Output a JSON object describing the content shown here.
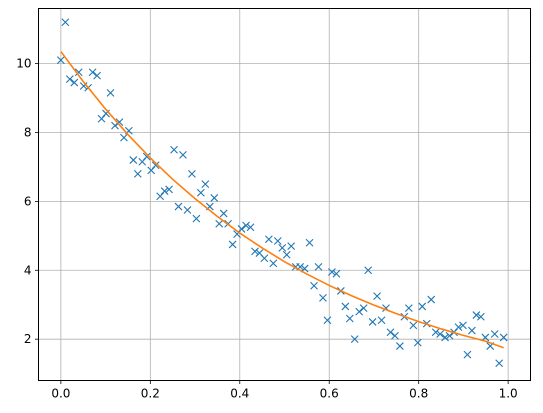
{
  "chart_data": {
    "type": "scatter",
    "title": "",
    "xlabel": "",
    "ylabel": "",
    "xlim": [
      -0.05,
      1.05
    ],
    "ylim": [
      0.8,
      11.6
    ],
    "xticks": [
      0.0,
      0.2,
      0.4,
      0.6,
      0.8,
      1.0
    ],
    "xtick_labels": [
      "0.0",
      "0.2",
      "0.4",
      "0.6",
      "0.8",
      "1.0"
    ],
    "yticks": [
      2,
      4,
      6,
      8,
      10
    ],
    "ytick_labels": [
      "2",
      "4",
      "6",
      "8",
      "10"
    ],
    "grid": true,
    "legend": "none",
    "colors": {
      "scatter": "#1f77b4",
      "fit": "#ff7f0e",
      "grid": "#b0b0b0"
    },
    "series": [
      {
        "kind": "scatter",
        "marker": "x",
        "x": [
          0.0,
          0.01,
          0.02,
          0.03,
          0.04,
          0.051,
          0.061,
          0.071,
          0.081,
          0.091,
          0.101,
          0.111,
          0.121,
          0.131,
          0.141,
          0.152,
          0.162,
          0.172,
          0.182,
          0.192,
          0.202,
          0.212,
          0.222,
          0.232,
          0.242,
          0.253,
          0.263,
          0.273,
          0.283,
          0.293,
          0.303,
          0.313,
          0.323,
          0.333,
          0.343,
          0.354,
          0.364,
          0.374,
          0.384,
          0.394,
          0.404,
          0.414,
          0.424,
          0.434,
          0.444,
          0.455,
          0.465,
          0.475,
          0.485,
          0.495,
          0.505,
          0.515,
          0.525,
          0.535,
          0.545,
          0.556,
          0.566,
          0.576,
          0.586,
          0.596,
          0.606,
          0.616,
          0.626,
          0.636,
          0.646,
          0.657,
          0.667,
          0.677,
          0.687,
          0.697,
          0.707,
          0.717,
          0.727,
          0.737,
          0.747,
          0.758,
          0.768,
          0.778,
          0.788,
          0.798,
          0.808,
          0.818,
          0.828,
          0.838,
          0.848,
          0.859,
          0.869,
          0.879,
          0.889,
          0.899,
          0.909,
          0.919,
          0.929,
          0.939,
          0.949,
          0.96,
          0.97,
          0.98,
          0.99
        ],
        "y": [
          10.1,
          11.2,
          9.55,
          9.45,
          9.75,
          9.35,
          9.3,
          9.75,
          9.65,
          8.4,
          8.55,
          9.15,
          8.2,
          8.3,
          7.85,
          8.05,
          7.2,
          6.8,
          7.15,
          7.3,
          6.9,
          7.05,
          6.15,
          6.3,
          6.35,
          7.5,
          5.85,
          7.35,
          5.75,
          6.8,
          5.5,
          6.25,
          6.5,
          5.85,
          6.1,
          5.35,
          5.65,
          5.35,
          4.75,
          5.05,
          5.2,
          5.3,
          5.25,
          4.55,
          4.5,
          4.35,
          4.9,
          4.2,
          4.85,
          4.65,
          4.45,
          4.7,
          4.1,
          4.1,
          4.05,
          4.8,
          3.55,
          4.1,
          3.2,
          2.55,
          3.95,
          3.9,
          3.4,
          2.95,
          2.6,
          2.0,
          2.8,
          2.9,
          4.0,
          2.5,
          3.25,
          2.55,
          2.9,
          2.2,
          2.1,
          1.8,
          2.65,
          2.9,
          2.4,
          1.9,
          2.95,
          2.45,
          3.15,
          2.2,
          2.15,
          2.05,
          2.1,
          2.2,
          2.35,
          2.4,
          1.55,
          2.25,
          2.7,
          2.65,
          2.05,
          1.8,
          2.15,
          1.3,
          2.05
        ]
      },
      {
        "kind": "line",
        "x": [
          0.0,
          0.05,
          0.1,
          0.15,
          0.2,
          0.25,
          0.3,
          0.35,
          0.4,
          0.45,
          0.5,
          0.55,
          0.6,
          0.65,
          0.7,
          0.75,
          0.8,
          0.85,
          0.9,
          0.95,
          0.99
        ],
        "y": [
          10.35,
          9.48,
          8.68,
          7.94,
          7.26,
          6.64,
          6.08,
          5.56,
          5.08,
          4.65,
          4.25,
          3.89,
          3.56,
          3.26,
          2.99,
          2.74,
          2.51,
          2.3,
          2.11,
          1.94,
          1.75
        ]
      }
    ]
  }
}
